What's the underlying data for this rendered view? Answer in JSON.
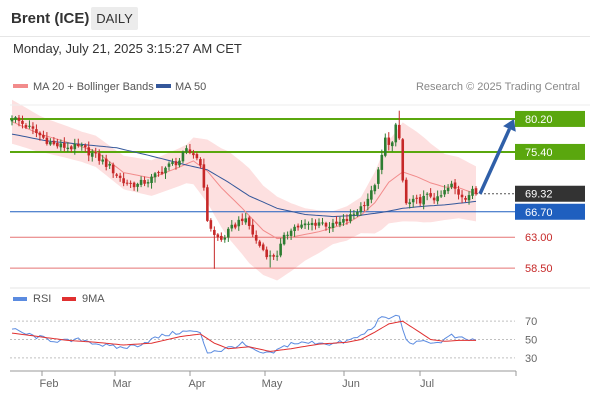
{
  "header": {
    "instrument": "Brent (ICE)",
    "timeframe": "DAILY",
    "timestamp": "Monday, July 21, 2025 3:15:27 AM CET"
  },
  "legend": {
    "ma20": "MA 20 + Bollinger Bands",
    "ma50": "MA 50",
    "copyright": "Research © 2025 Trading Central",
    "rsi": "RSI",
    "rsi_ma": "9MA"
  },
  "colors": {
    "bull": "#2e7d32",
    "bear": "#c62828",
    "ma20": "#f28b8b",
    "ma50": "#34579a",
    "band_fill": "#fde0e0",
    "resistance": "#5aa70e",
    "support_blue": "#1f5fbf",
    "support_red": "#e57373",
    "current": "#333333",
    "arrow": "#2f5fa8",
    "rsi": "#5b8be0",
    "rsi_ma": "#e03030"
  },
  "chart_data": [
    {
      "type": "candlestick",
      "title": "Brent (ICE) DAILY",
      "ylim": [
        57.5,
        81.5
      ],
      "x_labels": [
        "Feb",
        "Mar",
        "Apr",
        "May",
        "Jun",
        "Jul"
      ],
      "levels": [
        {
          "value": 80.2,
          "label": "80.20",
          "kind": "resistance"
        },
        {
          "value": 75.4,
          "label": "75.40",
          "kind": "resistance"
        },
        {
          "value": 69.32,
          "label": "69.32",
          "kind": "current"
        },
        {
          "value": 66.7,
          "label": "66.70",
          "kind": "support"
        },
        {
          "value": 63.0,
          "label": "63.00",
          "kind": "support"
        },
        {
          "value": 58.5,
          "label": "58.50",
          "kind": "support"
        }
      ],
      "projection": {
        "from": 69.3,
        "to": 80.2
      },
      "anchors": {
        "close": [
          [
            0,
            80.5
          ],
          [
            4,
            79.2
          ],
          [
            8,
            77.8
          ],
          [
            12,
            76.4
          ],
          [
            16,
            76.1
          ],
          [
            20,
            76.0
          ],
          [
            24,
            74.8
          ],
          [
            28,
            73.2
          ],
          [
            32,
            71.0
          ],
          [
            36,
            70.6
          ],
          [
            40,
            71.5
          ],
          [
            44,
            73.1
          ],
          [
            48,
            74.2
          ],
          [
            50,
            75.5
          ],
          [
            52,
            75.1
          ],
          [
            54,
            73.9
          ],
          [
            56,
            65.6
          ],
          [
            58,
            63.2
          ],
          [
            60,
            62.6
          ],
          [
            63,
            64.3
          ],
          [
            66,
            65.8
          ],
          [
            68,
            64.6
          ],
          [
            70,
            62.4
          ],
          [
            72,
            61.2
          ],
          [
            74,
            60.1
          ],
          [
            76,
            60.6
          ],
          [
            78,
            62.8
          ],
          [
            80,
            64.4
          ],
          [
            84,
            64.7
          ],
          [
            88,
            65.2
          ],
          [
            92,
            64.6
          ],
          [
            96,
            65.5
          ],
          [
            100,
            67.4
          ],
          [
            103,
            69.4
          ],
          [
            105,
            72.4
          ],
          [
            107,
            77.2
          ],
          [
            109,
            76.6
          ],
          [
            110,
            78.9
          ],
          [
            111,
            77.3
          ],
          [
            112,
            71.2
          ],
          [
            113,
            67.8
          ],
          [
            116,
            68.2
          ],
          [
            120,
            69.1
          ],
          [
            122,
            68.4
          ],
          [
            124,
            69.6
          ],
          [
            126,
            70.5
          ],
          [
            128,
            69.4
          ],
          [
            130,
            68.9
          ],
          [
            132,
            69.6
          ],
          [
            133,
            69.32
          ]
        ],
        "ma20": [
          [
            0,
            79.8
          ],
          [
            8,
            78.0
          ],
          [
            16,
            76.8
          ],
          [
            24,
            75.5
          ],
          [
            32,
            72.4
          ],
          [
            40,
            71.6
          ],
          [
            48,
            73.2
          ],
          [
            52,
            74.1
          ],
          [
            56,
            72.6
          ],
          [
            60,
            70.2
          ],
          [
            66,
            67.2
          ],
          [
            72,
            64.0
          ],
          [
            76,
            62.8
          ],
          [
            80,
            63.0
          ],
          [
            88,
            63.8
          ],
          [
            96,
            65.0
          ],
          [
            100,
            66.2
          ],
          [
            104,
            68.0
          ],
          [
            108,
            71.0
          ],
          [
            112,
            72.5
          ],
          [
            116,
            71.8
          ],
          [
            120,
            70.9
          ],
          [
            124,
            70.3
          ],
          [
            128,
            70.2
          ],
          [
            133,
            69.3
          ]
        ],
        "ma50": [
          [
            0,
            78.0
          ],
          [
            10,
            77.0
          ],
          [
            20,
            76.5
          ],
          [
            30,
            76.0
          ],
          [
            40,
            74.8
          ],
          [
            50,
            73.5
          ],
          [
            56,
            72.8
          ],
          [
            62,
            71.0
          ],
          [
            68,
            69.0
          ],
          [
            76,
            67.2
          ],
          [
            84,
            66.3
          ],
          [
            92,
            66.0
          ],
          [
            100,
            66.2
          ],
          [
            106,
            66.6
          ],
          [
            112,
            67.2
          ],
          [
            118,
            67.5
          ],
          [
            124,
            67.7
          ],
          [
            133,
            68.2
          ]
        ],
        "band_width": [
          [
            0,
            3.2
          ],
          [
            10,
            2.5
          ],
          [
            20,
            2.2
          ],
          [
            30,
            2.4
          ],
          [
            40,
            2.6
          ],
          [
            50,
            2.8
          ],
          [
            56,
            4.6
          ],
          [
            62,
            6.3
          ],
          [
            68,
            6.9
          ],
          [
            76,
            6.1
          ],
          [
            84,
            3.8
          ],
          [
            92,
            2.4
          ],
          [
            100,
            2.6
          ],
          [
            106,
            5.4
          ],
          [
            112,
            7.2
          ],
          [
            118,
            6.2
          ],
          [
            124,
            4.8
          ],
          [
            133,
            4.0
          ]
        ],
        "rsi": [
          [
            0,
            61
          ],
          [
            4,
            56
          ],
          [
            8,
            52
          ],
          [
            12,
            49
          ],
          [
            16,
            48
          ],
          [
            20,
            50
          ],
          [
            24,
            46
          ],
          [
            28,
            42
          ],
          [
            32,
            41
          ],
          [
            36,
            44
          ],
          [
            40,
            50
          ],
          [
            44,
            55
          ],
          [
            48,
            58
          ],
          [
            52,
            59
          ],
          [
            54,
            56
          ],
          [
            56,
            36
          ],
          [
            58,
            38
          ],
          [
            60,
            38
          ],
          [
            63,
            42
          ],
          [
            66,
            45
          ],
          [
            68,
            41
          ],
          [
            70,
            36
          ],
          [
            72,
            35
          ],
          [
            74,
            34
          ],
          [
            76,
            38
          ],
          [
            78,
            42
          ],
          [
            80,
            46
          ],
          [
            84,
            46
          ],
          [
            88,
            47
          ],
          [
            92,
            45
          ],
          [
            96,
            48
          ],
          [
            100,
            54
          ],
          [
            103,
            62
          ],
          [
            105,
            71
          ],
          [
            107,
            74
          ],
          [
            109,
            73
          ],
          [
            110,
            77
          ],
          [
            111,
            74
          ],
          [
            112,
            63
          ],
          [
            113,
            48
          ],
          [
            116,
            46
          ],
          [
            120,
            48
          ],
          [
            122,
            46
          ],
          [
            124,
            50
          ],
          [
            126,
            54
          ],
          [
            128,
            51
          ],
          [
            130,
            50
          ],
          [
            133,
            49
          ]
        ],
        "rsi_ma": [
          [
            0,
            57
          ],
          [
            8,
            53
          ],
          [
            16,
            49
          ],
          [
            24,
            47
          ],
          [
            32,
            44
          ],
          [
            40,
            46
          ],
          [
            48,
            53
          ],
          [
            54,
            56
          ],
          [
            58,
            46
          ],
          [
            62,
            40
          ],
          [
            68,
            42
          ],
          [
            74,
            37
          ],
          [
            80,
            40
          ],
          [
            88,
            45
          ],
          [
            96,
            47
          ],
          [
            100,
            50
          ],
          [
            104,
            58
          ],
          [
            108,
            67
          ],
          [
            112,
            70
          ],
          [
            116,
            60
          ],
          [
            120,
            50
          ],
          [
            124,
            48
          ],
          [
            128,
            49
          ],
          [
            133,
            49
          ]
        ]
      }
    },
    {
      "type": "line",
      "title": "RSI",
      "ylim": [
        20,
        80
      ],
      "y_ticks": [
        "70",
        "50",
        "30"
      ],
      "y_tick_values": [
        70,
        50,
        30
      ],
      "series": [
        {
          "name": "RSI"
        },
        {
          "name": "9MA"
        }
      ]
    }
  ]
}
